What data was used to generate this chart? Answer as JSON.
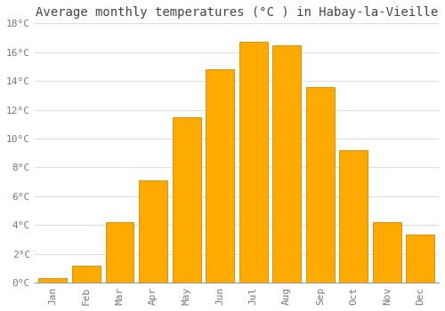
{
  "months": [
    "Jan",
    "Feb",
    "Mar",
    "Apr",
    "May",
    "Jun",
    "Jul",
    "Aug",
    "Sep",
    "Oct",
    "Nov",
    "Dec"
  ],
  "values": [
    0.3,
    1.2,
    4.2,
    7.1,
    11.5,
    14.8,
    16.7,
    16.5,
    13.6,
    9.2,
    4.2,
    3.3
  ],
  "bar_color": "#FFAA00",
  "bar_edge_color": "#CC8800",
  "title": "Average monthly temperatures (°C ) in Habay-la-Vieille",
  "ylim": [
    0,
    18
  ],
  "yticks": [
    0,
    2,
    4,
    6,
    8,
    10,
    12,
    14,
    16,
    18
  ],
  "ytick_labels": [
    "0°C",
    "2°C",
    "4°C",
    "6°C",
    "8°C",
    "10°C",
    "12°C",
    "14°C",
    "16°C",
    "18°C"
  ],
  "bg_color": "#FFFFFF",
  "grid_color": "#DDDDDD",
  "title_fontsize": 10,
  "tick_fontsize": 8,
  "font_family": "monospace",
  "tick_color": "#777777",
  "bar_width": 0.85
}
